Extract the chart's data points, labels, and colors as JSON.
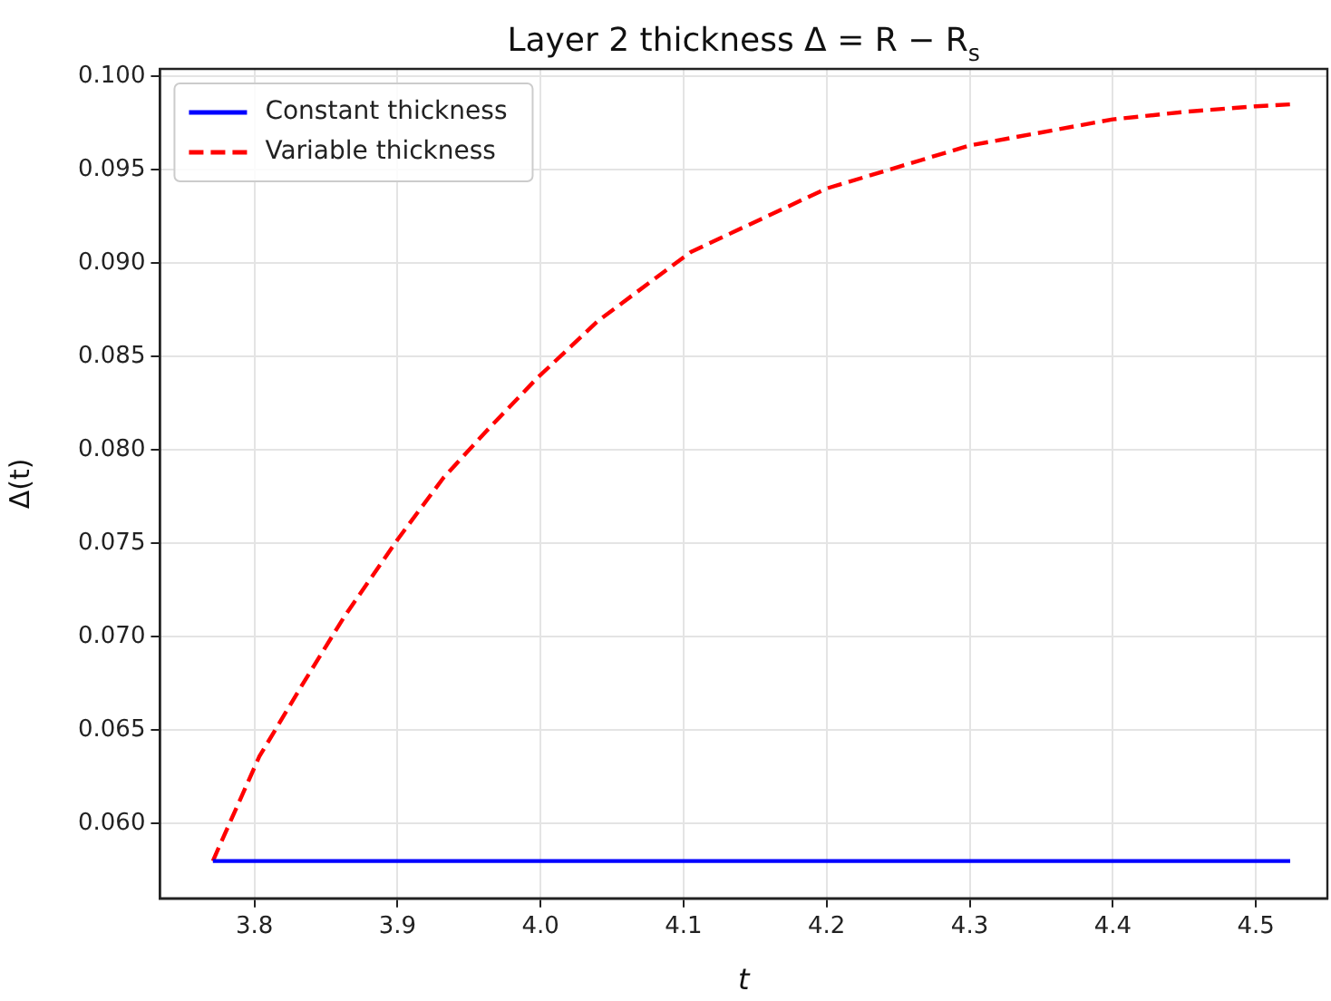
{
  "chart_data": {
    "type": "line",
    "title": "Layer 2 thickness Δ = R − R$_{s}$",
    "xlabel": "t",
    "ylabel": "Δ(t)",
    "xlim": [
      3.734,
      4.55
    ],
    "ylim": [
      0.056,
      0.1004
    ],
    "xticks": [
      3.8,
      3.9,
      {
        "value": 4.0,
        "label": "4.0"
      },
      4.1,
      4.2,
      4.3,
      4.4,
      4.5
    ],
    "yticks": [
      {
        "value": 0.06,
        "label": "0.060"
      },
      {
        "value": 0.065,
        "label": "0.065"
      },
      {
        "value": 0.07,
        "label": "0.070"
      },
      {
        "value": 0.075,
        "label": "0.075"
      },
      {
        "value": 0.08,
        "label": "0.080"
      },
      {
        "value": 0.085,
        "label": "0.085"
      },
      {
        "value": 0.09,
        "label": "0.090"
      },
      {
        "value": 0.095,
        "label": "0.095"
      },
      {
        "value": 0.1,
        "label": "0.100"
      }
    ],
    "grid": true,
    "legend": "top left",
    "marker": "none",
    "series": [
      {
        "name": "Constant thickness",
        "color": "#0000ff",
        "line_style": "solid",
        "x": [
          3.771,
          4.524
        ],
        "values": [
          0.058,
          0.058
        ]
      },
      {
        "name": "Variable thickness",
        "color": "#ff0000",
        "line_style": "dashed",
        "x": [
          3.771,
          3.775,
          3.8035,
          3.834,
          3.863,
          3.9,
          3.932,
          3.962,
          3.997,
          4.04,
          4.105,
          4.2,
          4.3,
          4.4,
          4.45,
          4.5,
          4.524
        ],
        "values": [
          0.058,
          0.0587,
          0.0636,
          0.0675,
          0.0711,
          0.0752,
          0.0785,
          0.081,
          0.0838,
          0.0869,
          0.0906,
          0.094,
          0.0963,
          0.0977,
          0.0981,
          0.0984,
          0.0985
        ]
      }
    ]
  }
}
